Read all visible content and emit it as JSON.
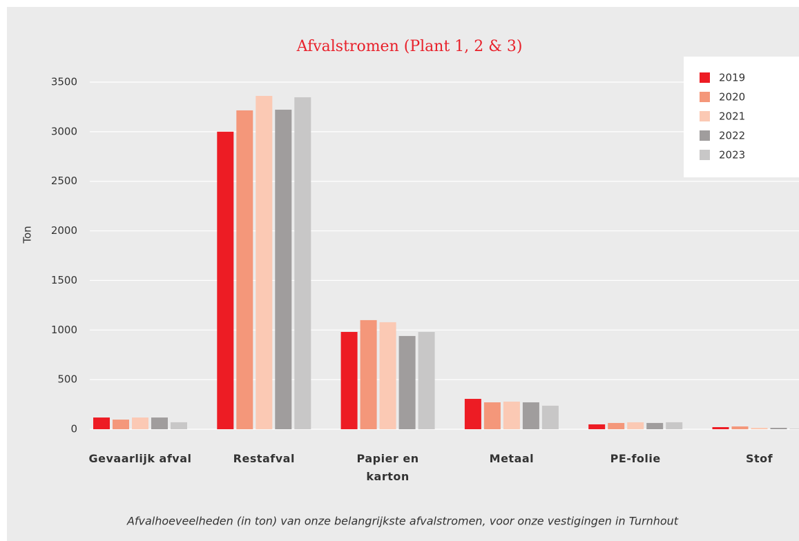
{
  "chart_data": {
    "type": "bar",
    "title": "Afvalstromen (Plant 1, 2 & 3)",
    "y_label": "Ton",
    "caption": "Afvalhoeveelheden (in ton) van onze belangrijkste afvalstromen, voor onze vestigingen in Turnhout",
    "categories": [
      "Gevaarlijk afval",
      "Restafval",
      "Papier en karton",
      "Metaal",
      "PE-folie",
      "Stof"
    ],
    "series": [
      {
        "name": "2019",
        "color": "#ed1c24",
        "values": [
          118,
          3000,
          981,
          306,
          49,
          21
        ]
      },
      {
        "name": "2020",
        "color": "#f4977a",
        "values": [
          97,
          3215,
          1100,
          271,
          63,
          28
        ]
      },
      {
        "name": "2021",
        "color": "#fbc9b4",
        "values": [
          118,
          3361,
          1079,
          278,
          70,
          14
        ]
      },
      {
        "name": "2022",
        "color": "#a09d9d",
        "values": [
          118,
          3222,
          940,
          271,
          63,
          14
        ]
      },
      {
        "name": "2023",
        "color": "#c8c7c7",
        "values": [
          70,
          3347,
          981,
          237,
          70,
          5
        ]
      }
    ],
    "ylim": [
      0,
      3500
    ],
    "yticks": [
      0,
      500,
      1000,
      1500,
      2000,
      2500,
      3000,
      3500
    ],
    "grid": true
  }
}
